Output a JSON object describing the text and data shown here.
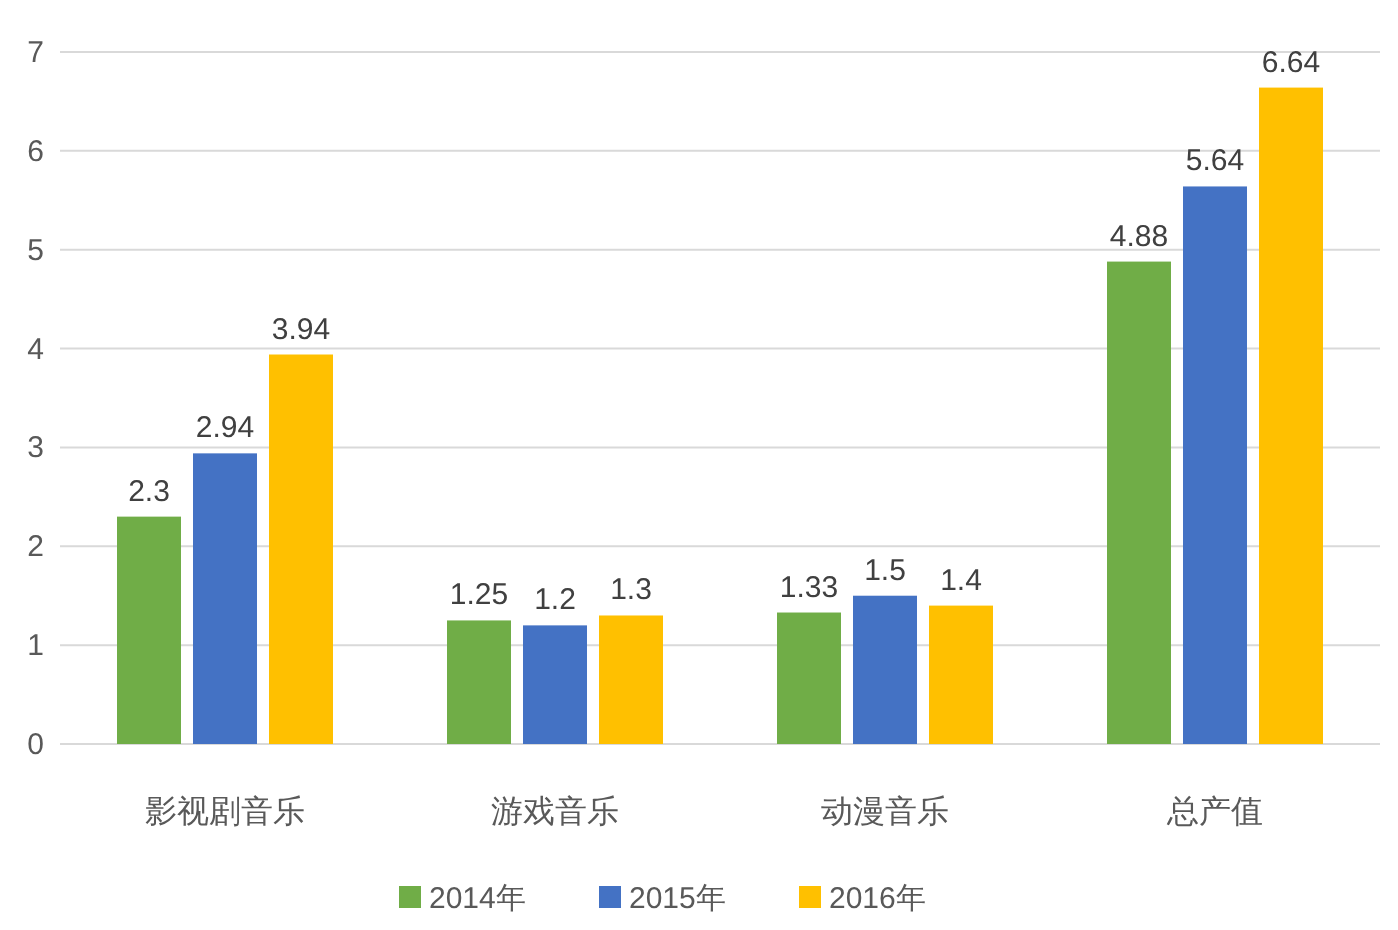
{
  "chart_data": {
    "type": "bar",
    "categories": [
      "影视剧音乐",
      "游戏音乐",
      "动漫音乐",
      "总产值"
    ],
    "series": [
      {
        "name": "2014年",
        "color": "#70ad47",
        "values": [
          2.3,
          1.25,
          1.33,
          4.88
        ]
      },
      {
        "name": "2015年",
        "color": "#4472c4",
        "values": [
          2.94,
          1.2,
          1.5,
          5.64
        ]
      },
      {
        "name": "2016年",
        "color": "#ffc000",
        "values": [
          3.94,
          1.3,
          1.4,
          6.64
        ]
      }
    ],
    "ylim": [
      0,
      7
    ],
    "yticks": [
      0,
      1,
      2,
      3,
      4,
      5,
      6,
      7
    ],
    "grid": "y",
    "data_labels": true,
    "legend": "bottom"
  }
}
